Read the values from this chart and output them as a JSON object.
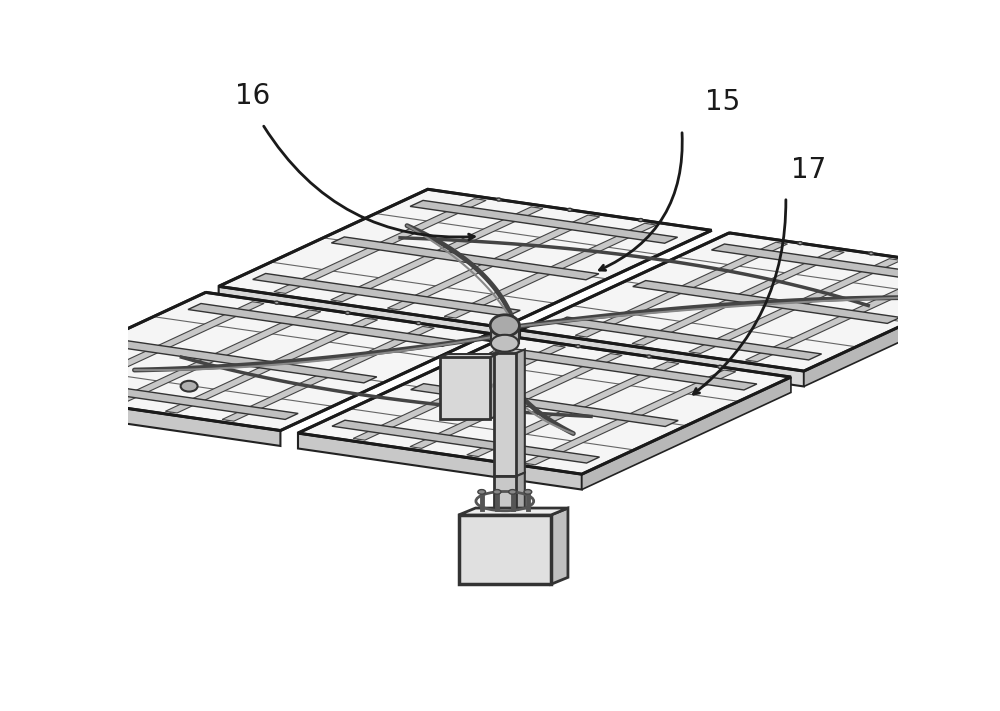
{
  "figure_width": 10.0,
  "figure_height": 7.11,
  "dpi": 100,
  "bg_color": "#ffffff",
  "label_15": "15",
  "label_16": "16",
  "label_17": "17",
  "label_color": "#1a1a1a",
  "label_fontsize": 20,
  "line_color": "#1a1a1a",
  "panel_fill": "#f0f0f0",
  "panel_edge": "#222222",
  "grid_color": "#555555",
  "frame_color": "#333333",
  "metal_light": "#d8d8d8",
  "metal_mid": "#b8b8b8",
  "metal_dark": "#888888",
  "post_color": "#cccccc",
  "base_color": "#e0e0e0"
}
